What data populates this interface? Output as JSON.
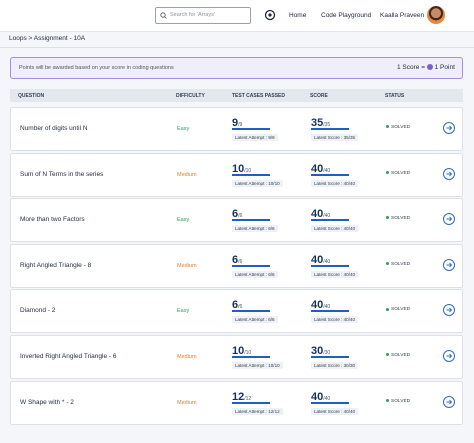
{
  "header": {
    "search_placeholder": "Search for 'Arrays'",
    "nav": [
      "Home",
      "Code Playground"
    ],
    "user": "Kaalla Praveen"
  },
  "breadcrumb": "Loops > Assignment - 10A",
  "banner": {
    "text": "Points will be awarded based on your score in coding questions",
    "score_text": "1 Score =",
    "point_text": "1 Point"
  },
  "table": {
    "columns": [
      "QUESTION",
      "DIFFICULTY",
      "TEST CASES PASSED",
      "SCORE",
      "STATUS"
    ],
    "rows": [
      {
        "name": "Number of digits until N",
        "difficulty": "Easy",
        "difficulty_color": "#2f9e5e",
        "passed": "9",
        "passed_total": "/9",
        "latest_attempt": "Latest Attempt : 9/9",
        "score": "35",
        "score_total": "/35",
        "latest_score": "Latest Score : 35/35",
        "status": "SOLVED"
      },
      {
        "name": "Sum of N Terms in the series",
        "difficulty": "Medium",
        "difficulty_color": "#e0832c",
        "passed": "10",
        "passed_total": "/10",
        "latest_attempt": "Latest Attempt : 10/10",
        "score": "40",
        "score_total": "/40",
        "latest_score": "Latest Score : 40/40",
        "status": "SOLVED"
      },
      {
        "name": "More than two Factors",
        "difficulty": "Easy",
        "difficulty_color": "#2f9e5e",
        "passed": "6",
        "passed_total": "/6",
        "latest_attempt": "Latest Attempt : 6/6",
        "score": "40",
        "score_total": "/40",
        "latest_score": "Latest Score : 40/40",
        "status": "SOLVED"
      },
      {
        "name": "Right Angled Triangle - 8",
        "difficulty": "Medium",
        "difficulty_color": "#e0832c",
        "passed": "6",
        "passed_total": "/6",
        "latest_attempt": "Latest Attempt : 6/6",
        "score": "40",
        "score_total": "/40",
        "latest_score": "Latest Score : 40/40",
        "status": "SOLVED"
      },
      {
        "name": "Diamond - 2",
        "difficulty": "Easy",
        "difficulty_color": "#2f9e5e",
        "passed": "6",
        "passed_total": "/6",
        "latest_attempt": "Latest Attempt : 6/6",
        "score": "40",
        "score_total": "/40",
        "latest_score": "Latest Score : 40/40",
        "status": "SOLVED"
      },
      {
        "name": "Inverted Right Angled Triangle - 6",
        "difficulty": "Medium",
        "difficulty_color": "#e0832c",
        "passed": "10",
        "passed_total": "/10",
        "latest_attempt": "Latest Attempt : 10/10",
        "score": "30",
        "score_total": "/30",
        "latest_score": "Latest Score : 30/30",
        "status": "SOLVED"
      },
      {
        "name": "W Shape with * - 2",
        "difficulty": "Medium",
        "difficulty_color": "#e0832c",
        "passed": "12",
        "passed_total": "/12",
        "latest_attempt": "Latest Attempt : 12/12",
        "score": "40",
        "score_total": "/40",
        "latest_score": "Latest Score : 40/40",
        "status": "SOLVED"
      }
    ]
  }
}
